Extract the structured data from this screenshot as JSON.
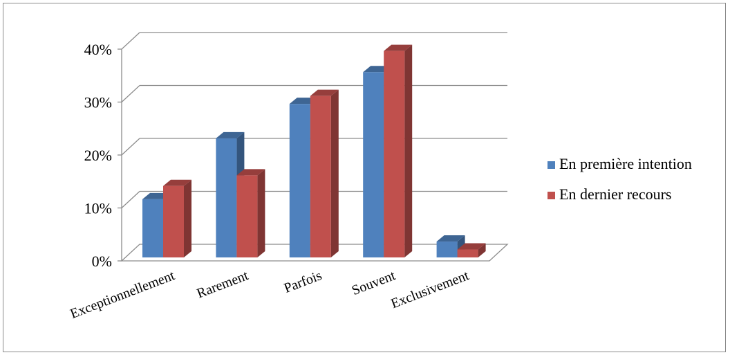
{
  "chart_data": {
    "type": "bar",
    "style": "3d-clustered-column",
    "categories": [
      "Exceptionnellement",
      "Rarement",
      "Parfois",
      "Souvent",
      "Exclusivement"
    ],
    "series": [
      {
        "name": "En première intention",
        "values": [
          11,
          22.5,
          29,
          35,
          3
        ],
        "color": "#4F81BD"
      },
      {
        "name": "En dernier recours",
        "values": [
          13.5,
          15.5,
          30.5,
          39,
          1.5
        ],
        "color": "#C0504D"
      }
    ],
    "ylim": [
      0,
      40
    ],
    "yticks": [
      "0%",
      "10%",
      "20%",
      "30%",
      "40%"
    ],
    "ytick_values": [
      0,
      10,
      20,
      30,
      40
    ],
    "grid": true,
    "legend_position": "right",
    "title": "",
    "xlabel": "",
    "ylabel": ""
  }
}
